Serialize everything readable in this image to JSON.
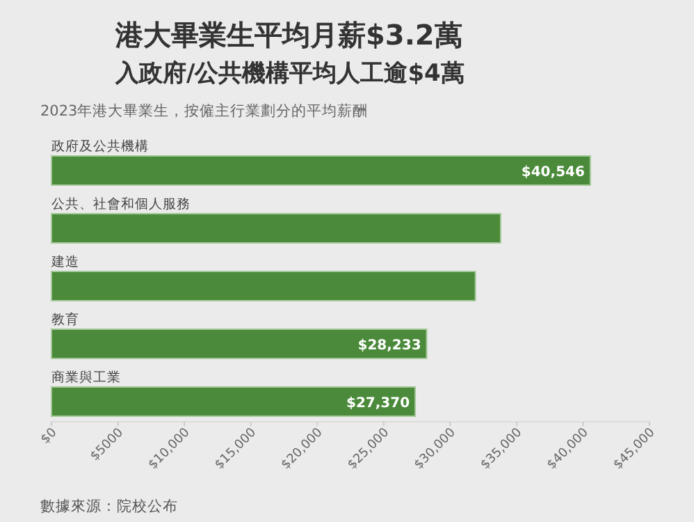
{
  "chart_data": {
    "type": "bar",
    "orientation": "horizontal",
    "title": "港大畢業生平均月薪$3.2萬",
    "subtitle": "入政府/公共機構平均人工逾$4萬",
    "annotations": [
      "2023年港大畢業生，按僱主行業劃分的平均薪酬",
      "數據來源：院校公布"
    ],
    "categories": [
      "政府及公共機構",
      "公共、社會和個人服務",
      "建造",
      "教育",
      "商業與工業"
    ],
    "values": [
      40546,
      33800,
      31900,
      28233,
      27370
    ],
    "value_labels": [
      "$40,546",
      null,
      null,
      "$28,233",
      "$27,370"
    ],
    "color": "#4a8a3a",
    "xlim": [
      0,
      45000
    ],
    "xticks": [
      {
        "value": 0,
        "label": "$0"
      },
      {
        "value": 5000,
        "label": "$5000"
      },
      {
        "value": 10000,
        "label": "$10,000"
      },
      {
        "value": 15000,
        "label": "$15,000"
      },
      {
        "value": 20000,
        "label": "$20,000"
      },
      {
        "value": 25000,
        "label": "$25,000"
      },
      {
        "value": 30000,
        "label": "$30,000"
      },
      {
        "value": 35000,
        "label": "$35,000"
      },
      {
        "value": 40000,
        "label": "$40,000"
      },
      {
        "value": 45000,
        "label": "$45,000"
      }
    ]
  }
}
